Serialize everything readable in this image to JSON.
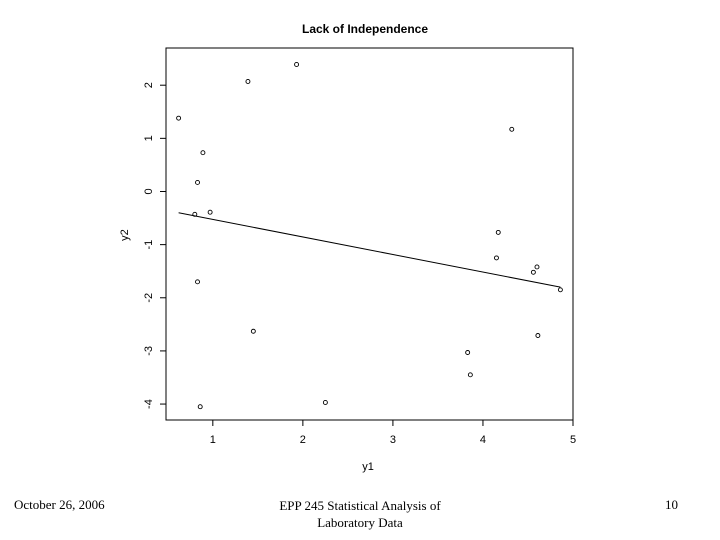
{
  "chart_data": {
    "type": "scatter",
    "title": "Lack of Independence",
    "xlabel": "y1",
    "ylabel": "y2",
    "xlim": [
      0.48,
      5.0
    ],
    "ylim": [
      -4.3,
      2.7
    ],
    "xticks": [
      1,
      2,
      3,
      4,
      5
    ],
    "yticks": [
      -4,
      -3,
      -2,
      -1,
      0,
      1,
      2
    ],
    "points": [
      {
        "x": 0.62,
        "y": 1.38
      },
      {
        "x": 1.39,
        "y": 2.07
      },
      {
        "x": 1.93,
        "y": 2.39
      },
      {
        "x": 0.89,
        "y": 0.73
      },
      {
        "x": 0.83,
        "y": 0.17
      },
      {
        "x": 0.8,
        "y": -0.43
      },
      {
        "x": 0.97,
        "y": -0.39
      },
      {
        "x": 0.83,
        "y": -1.7
      },
      {
        "x": 1.45,
        "y": -2.63
      },
      {
        "x": 0.86,
        "y": -4.05
      },
      {
        "x": 2.25,
        "y": -3.97
      },
      {
        "x": 3.83,
        "y": -3.03
      },
      {
        "x": 3.86,
        "y": -3.45
      },
      {
        "x": 4.17,
        "y": -0.77
      },
      {
        "x": 4.15,
        "y": -1.25
      },
      {
        "x": 4.32,
        "y": 1.17
      },
      {
        "x": 4.56,
        "y": -1.52
      },
      {
        "x": 4.6,
        "y": -1.42
      },
      {
        "x": 4.61,
        "y": -2.71
      },
      {
        "x": 4.86,
        "y": -1.85
      }
    ],
    "fit_line": {
      "x": [
        0.62,
        4.86
      ],
      "y": [
        -0.4,
        -1.8
      ]
    }
  },
  "footer": {
    "date": "October 26, 2006",
    "title_line1": "EPP 245 Statistical Analysis of",
    "title_line2": "Laboratory Data",
    "page": "10"
  }
}
